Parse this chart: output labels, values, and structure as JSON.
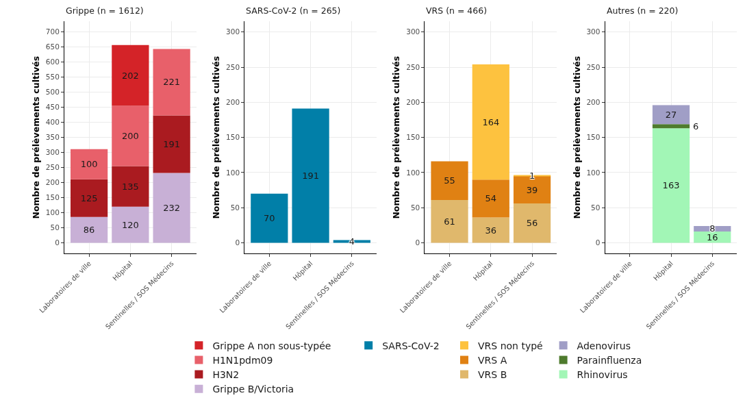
{
  "chart_data": [
    {
      "type": "bar",
      "title": "Grippe (n = 1612)",
      "ylabel": "Nombre de prélèvements cultivés",
      "categories": [
        "Laboratoires de ville",
        "Hôpital",
        "Sentinelles / SOS Médecins"
      ],
      "stacked": true,
      "data_labels": true,
      "grid": true,
      "legend": "bottom",
      "ylim": [
        -35,
        735
      ],
      "yticks": [
        0,
        50,
        100,
        150,
        200,
        250,
        300,
        350,
        400,
        450,
        500,
        550,
        600,
        650,
        700
      ],
      "series": [
        {
          "name": "Grippe B/Victoria",
          "color": "#c8b0d6",
          "values": [
            86,
            120,
            232
          ]
        },
        {
          "name": "H3N2",
          "color": "#aa1b20",
          "values": [
            125,
            135,
            191
          ]
        },
        {
          "name": "H1N1pdm09",
          "color": "#e8606a",
          "values": [
            100,
            200,
            221
          ]
        },
        {
          "name": "Grippe A non sous-typée",
          "color": "#d42328",
          "values": [
            null,
            202,
            null
          ]
        }
      ]
    },
    {
      "type": "bar",
      "title": "SARS-CoV-2 (n = 265)",
      "ylabel": "Nombre de prélèvements cultivés",
      "categories": [
        "Laboratoires de ville",
        "Hôpital",
        "Sentinelles / SOS Médecins"
      ],
      "data_labels": true,
      "grid": true,
      "legend": "bottom",
      "ylim": [
        -15,
        315
      ],
      "yticks": [
        0,
        50,
        100,
        150,
        200,
        250,
        300
      ],
      "series": [
        {
          "name": "SARS-CoV-2",
          "color": "#017fa8",
          "values": [
            70,
            191,
            4
          ]
        }
      ]
    },
    {
      "type": "bar",
      "title": "VRS (n = 466)",
      "ylabel": "Nombre de prélèvements cultivés",
      "categories": [
        "Laboratoires de ville",
        "Hôpital",
        "Sentinelles / SOS Médecins"
      ],
      "stacked": true,
      "data_labels": true,
      "grid": true,
      "legend": "bottom",
      "ylim": [
        -15,
        315
      ],
      "yticks": [
        0,
        50,
        100,
        150,
        200,
        250,
        300
      ],
      "series": [
        {
          "name": "VRS B",
          "color": "#e0b86c",
          "values": [
            61,
            36,
            56
          ]
        },
        {
          "name": "VRS A",
          "color": "#e08113",
          "values": [
            55,
            54,
            39
          ]
        },
        {
          "name": "VRS non typé",
          "color": "#fdc23f",
          "values": [
            null,
            164,
            1
          ]
        }
      ]
    },
    {
      "type": "bar",
      "title": "Autres (n = 220)",
      "ylabel": "Nombre de prélèvements cultivés",
      "categories": [
        "Laboratoires de ville",
        "Hôpital",
        "Sentinelles / SOS Médecins"
      ],
      "stacked": true,
      "data_labels": true,
      "grid": true,
      "legend": "bottom",
      "ylim": [
        -15,
        315
      ],
      "yticks": [
        0,
        50,
        100,
        150,
        200,
        250,
        300
      ],
      "series": [
        {
          "name": "Rhinovirus",
          "color": "#a2f6b6",
          "values": [
            null,
            163,
            16
          ]
        },
        {
          "name": "Parainfluenza",
          "color": "#4e7b2d",
          "values": [
            null,
            6,
            null
          ]
        },
        {
          "name": "Adenovirus",
          "color": "#a09ec6",
          "values": [
            null,
            27,
            8
          ]
        }
      ]
    }
  ]
}
